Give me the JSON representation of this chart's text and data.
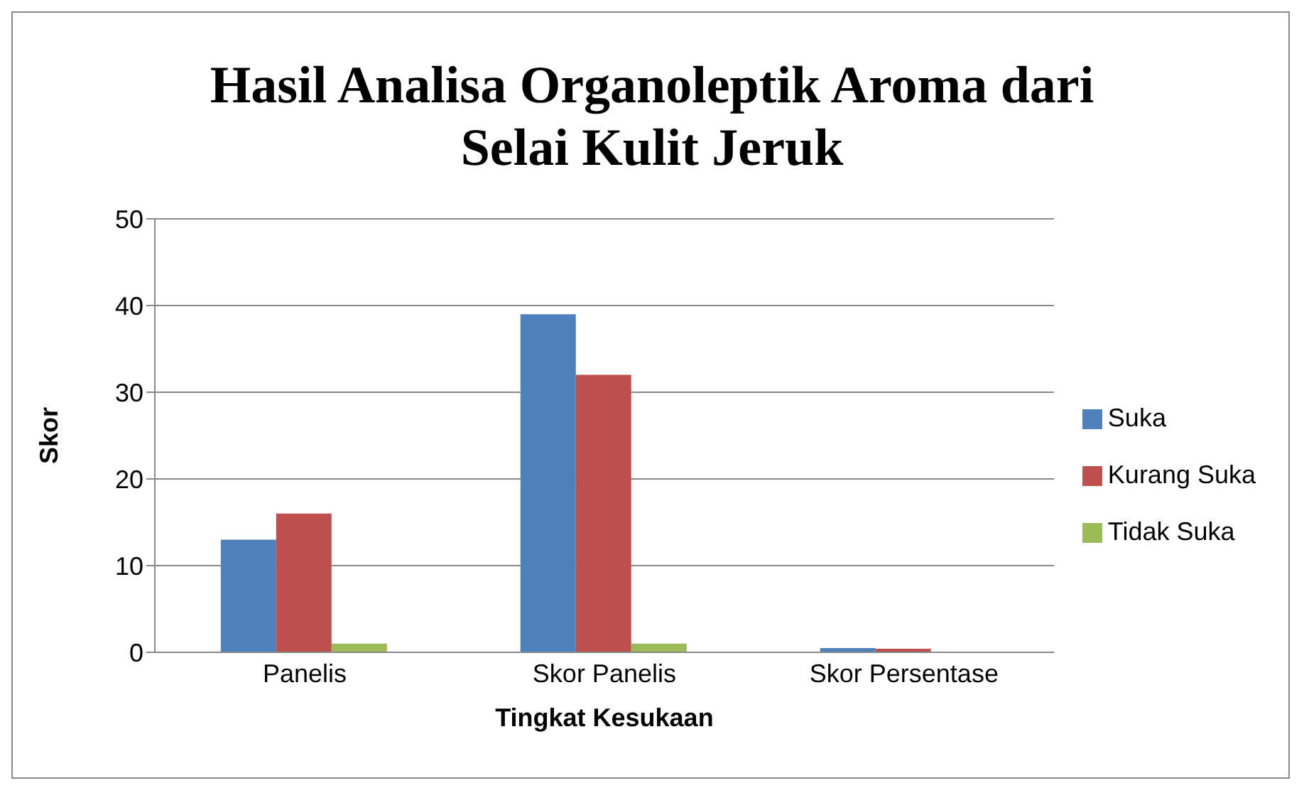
{
  "chart_data": {
    "type": "bar",
    "title": "Hasil Analisa Organoleptik Aroma dari Selai Kulit Jeruk",
    "xlabel": "Tingkat Kesukaan",
    "ylabel": "Skor",
    "categories": [
      "Panelis",
      "Skor Panelis",
      "Skor Persentase"
    ],
    "series": [
      {
        "name": "Suka",
        "color": "#4f81bd",
        "values": [
          13,
          39,
          0.5
        ]
      },
      {
        "name": "Kurang Suka",
        "color": "#c0504d",
        "values": [
          16,
          32,
          0.4
        ]
      },
      {
        "name": "Tidak Suka",
        "color": "#9bbb59",
        "values": [
          1,
          1,
          0
        ]
      }
    ],
    "ylim": [
      0,
      50
    ],
    "yticks": [
      0,
      10,
      20,
      30,
      40,
      50
    ],
    "grid": "y",
    "legend": "right"
  }
}
